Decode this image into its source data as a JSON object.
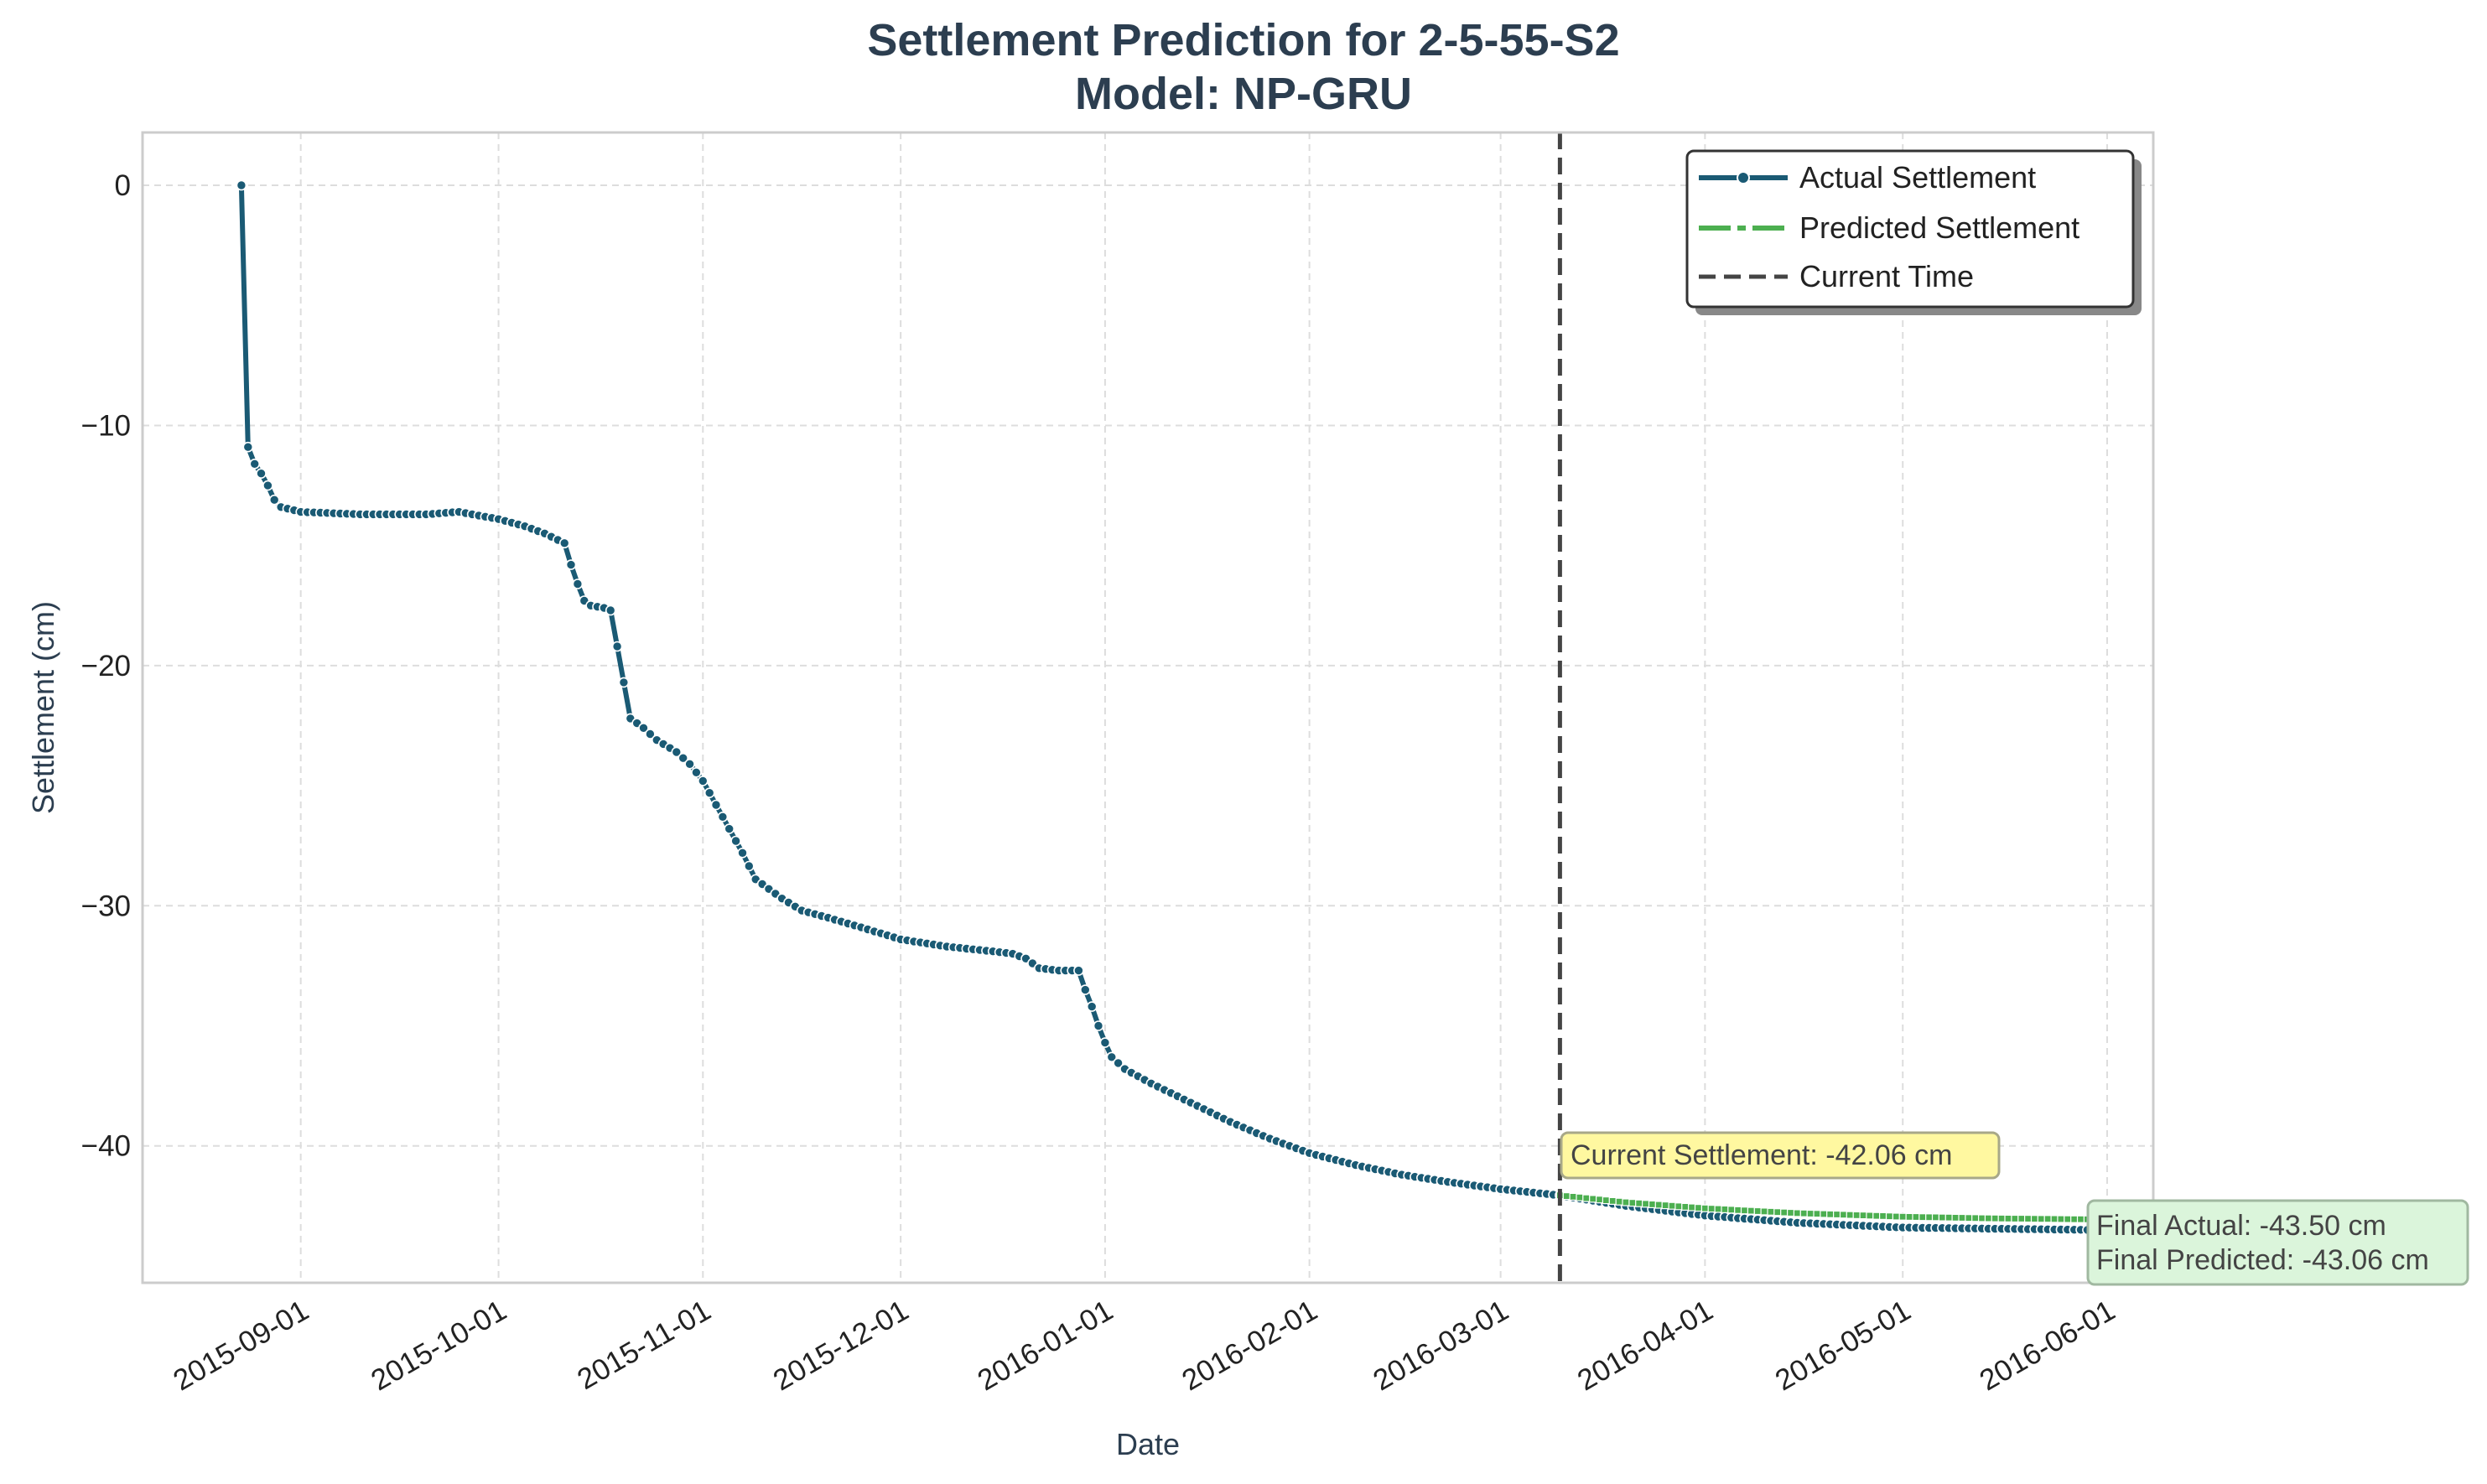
{
  "chart_data": {
    "type": "line",
    "title": "Settlement Prediction for 2-5-55-S2",
    "subtitle": "Model: NP-GRU",
    "xlabel": "Date",
    "ylabel": "Settlement (cm)",
    "x_range": [
      "2015-08-08",
      "2016-06-08"
    ],
    "ylim": [
      -45.7,
      2.2
    ],
    "x_ticks": [
      "2015-09-01",
      "2015-10-01",
      "2015-11-01",
      "2015-12-01",
      "2016-01-01",
      "2016-02-01",
      "2016-03-01",
      "2016-04-01",
      "2016-05-01",
      "2016-06-01"
    ],
    "y_ticks": [
      0,
      -10,
      -20,
      -30,
      -40
    ],
    "y_tick_labels": [
      "0",
      "−10",
      "−20",
      "−30",
      "−40"
    ],
    "grid": true,
    "legend_position": "top-right",
    "current_time": "2016-03-10",
    "series": [
      {
        "name": "Actual Settlement",
        "color": "#1a5a74",
        "points": [
          [
            "2015-08-23",
            0.0
          ],
          [
            "2015-08-24",
            -10.9
          ],
          [
            "2015-08-25",
            -11.6
          ],
          [
            "2015-08-26",
            -12.0
          ],
          [
            "2015-08-27",
            -12.5
          ],
          [
            "2015-08-28",
            -13.1
          ],
          [
            "2015-08-29",
            -13.4
          ],
          [
            "2015-09-01",
            -13.6
          ],
          [
            "2015-09-10",
            -13.7
          ],
          [
            "2015-09-20",
            -13.7
          ],
          [
            "2015-09-25",
            -13.6
          ],
          [
            "2015-10-01",
            -13.9
          ],
          [
            "2015-10-05",
            -14.2
          ],
          [
            "2015-10-08",
            -14.5
          ],
          [
            "2015-10-11",
            -14.9
          ],
          [
            "2015-10-12",
            -15.8
          ],
          [
            "2015-10-13",
            -16.6
          ],
          [
            "2015-10-14",
            -17.3
          ],
          [
            "2015-10-15",
            -17.5
          ],
          [
            "2015-10-17",
            -17.6
          ],
          [
            "2015-10-18",
            -17.7
          ],
          [
            "2015-10-19",
            -19.2
          ],
          [
            "2015-10-20",
            -20.7
          ],
          [
            "2015-10-21",
            -22.2
          ],
          [
            "2015-10-23",
            -22.6
          ],
          [
            "2015-10-25",
            -23.1
          ],
          [
            "2015-10-28",
            -23.6
          ],
          [
            "2015-10-30",
            -24.1
          ],
          [
            "2015-11-01",
            -24.8
          ],
          [
            "2015-11-03",
            -25.8
          ],
          [
            "2015-11-05",
            -26.8
          ],
          [
            "2015-11-07",
            -27.8
          ],
          [
            "2015-11-09",
            -28.9
          ],
          [
            "2015-11-11",
            -29.3
          ],
          [
            "2015-11-13",
            -29.7
          ],
          [
            "2015-11-16",
            -30.2
          ],
          [
            "2015-11-20",
            -30.5
          ],
          [
            "2015-11-25",
            -30.9
          ],
          [
            "2015-12-01",
            -31.4
          ],
          [
            "2015-12-08",
            -31.7
          ],
          [
            "2015-12-15",
            -31.9
          ],
          [
            "2015-12-18",
            -32.0
          ],
          [
            "2015-12-20",
            -32.2
          ],
          [
            "2015-12-22",
            -32.6
          ],
          [
            "2015-12-25",
            -32.7
          ],
          [
            "2015-12-28",
            -32.7
          ],
          [
            "2015-12-29",
            -33.5
          ],
          [
            "2015-12-30",
            -34.2
          ],
          [
            "2015-12-31",
            -35.0
          ],
          [
            "2016-01-01",
            -35.7
          ],
          [
            "2016-01-02",
            -36.3
          ],
          [
            "2016-01-04",
            -36.8
          ],
          [
            "2016-01-08",
            -37.4
          ],
          [
            "2016-01-14",
            -38.2
          ],
          [
            "2016-01-20",
            -39.0
          ],
          [
            "2016-01-26",
            -39.7
          ],
          [
            "2016-02-01",
            -40.3
          ],
          [
            "2016-02-08",
            -40.8
          ],
          [
            "2016-02-15",
            -41.2
          ],
          [
            "2016-02-22",
            -41.5
          ],
          [
            "2016-03-01",
            -41.8
          ],
          [
            "2016-03-10",
            -42.06
          ],
          [
            "2016-03-20",
            -42.5
          ],
          [
            "2016-04-01",
            -42.9
          ],
          [
            "2016-04-15",
            -43.2
          ],
          [
            "2016-05-01",
            -43.4
          ],
          [
            "2016-05-15",
            -43.45
          ],
          [
            "2016-05-30",
            -43.5
          ]
        ]
      },
      {
        "name": "Predicted Settlement",
        "color": "#4caf50",
        "points": [
          [
            "2016-03-10",
            -42.06
          ],
          [
            "2016-03-20",
            -42.35
          ],
          [
            "2016-04-01",
            -42.6
          ],
          [
            "2016-04-15",
            -42.8
          ],
          [
            "2016-05-01",
            -42.95
          ],
          [
            "2016-05-15",
            -43.02
          ],
          [
            "2016-05-30",
            -43.06
          ]
        ]
      }
    ],
    "annotations": {
      "current": "Current Settlement: -42.06 cm",
      "final_actual": "Final Actual: -43.50 cm",
      "final_predicted": "Final Predicted: -43.06 cm"
    },
    "legend_current_time": "Current Time"
  }
}
